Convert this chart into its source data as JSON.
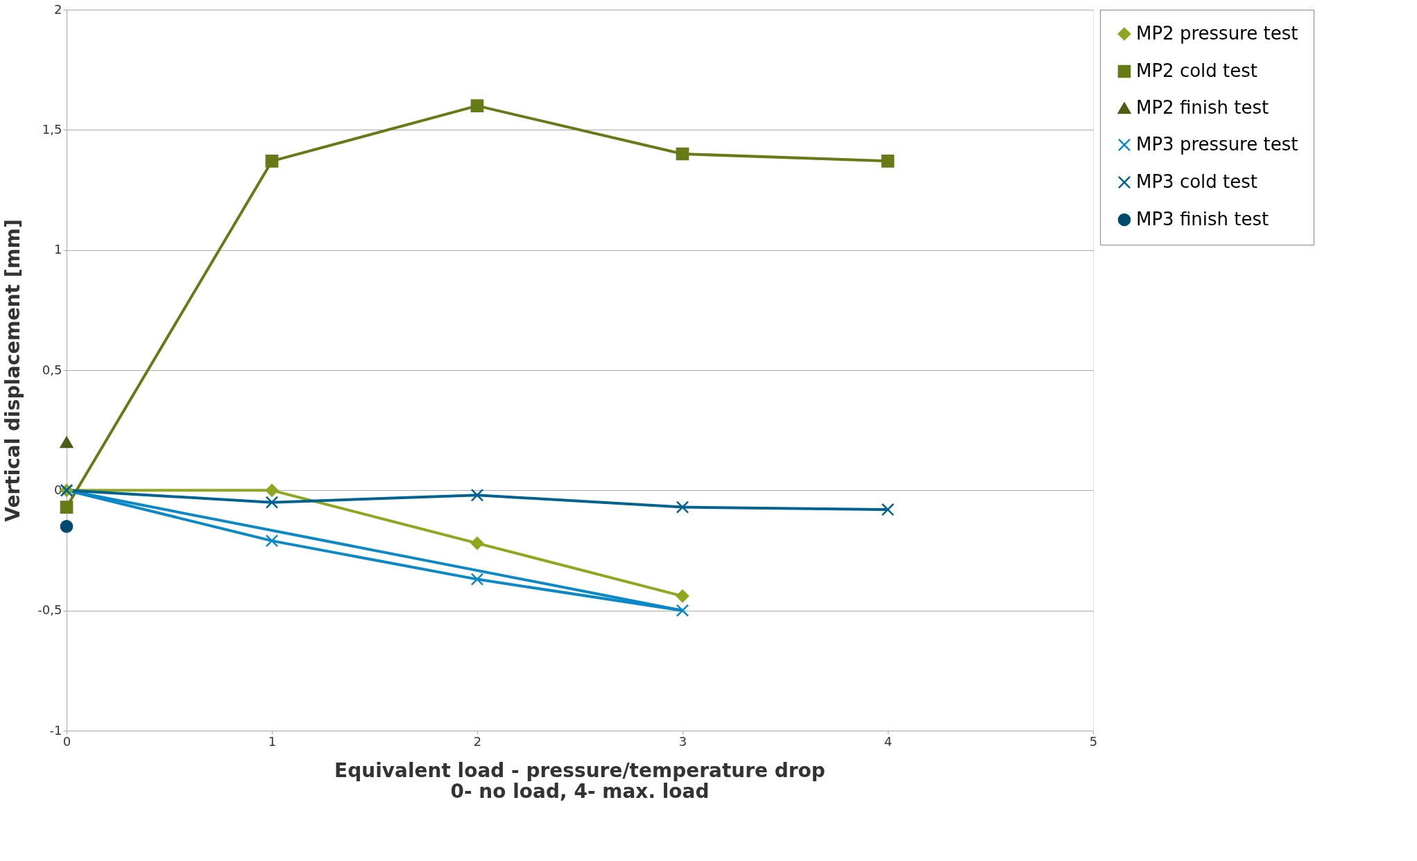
{
  "chart_data": {
    "type": "line",
    "xlabel": "Equivalent load - pressure/temperature drop\n0- no load, 4- max. load",
    "ylabel": "Vertical displacement  [mm]",
    "xlim": [
      0,
      5
    ],
    "xticks": [
      0,
      1,
      2,
      3,
      4,
      5
    ],
    "ylim": [
      -1,
      2
    ],
    "yticks": [
      -1,
      {
        "value": -0.5,
        "label": "-0,5"
      },
      0,
      {
        "value": 0.5,
        "label": "0,5"
      },
      1,
      {
        "value": 1.5,
        "label": "1,5"
      },
      2
    ],
    "grid": "y",
    "legend": "right",
    "series": [
      {
        "name": "MP2 pressure test",
        "color": "#8fa61f",
        "marker": "diamond",
        "x": [
          0,
          1,
          2,
          3
        ],
        "values": [
          0,
          0,
          -0.22,
          -0.44
        ]
      },
      {
        "name": "MP2 cold test",
        "color": "#667a16",
        "marker": "square",
        "x": [
          0,
          1,
          2,
          3,
          4
        ],
        "values": [
          -0.07,
          1.37,
          1.6,
          1.4,
          1.37
        ]
      },
      {
        "name": "MP2 finish test",
        "color": "#4c5e12",
        "marker": "triangle",
        "x": [
          0
        ],
        "values": [
          0.2
        ]
      },
      {
        "name": "MP3 pressure test",
        "color": "#0a88c8",
        "marker": "cross",
        "x": [
          0,
          1,
          2,
          3
        ],
        "values": [
          0,
          -0.21,
          -0.37,
          -0.5
        ]
      },
      {
        "color": "#0a88c8",
        "type": "line",
        "marker": "none",
        "x": [
          0,
          3
        ],
        "values": [
          0,
          -0.5
        ]
      },
      {
        "name": "MP3 cold test",
        "color": "#006290",
        "marker": "cross",
        "x": [
          0,
          1,
          2,
          3,
          4
        ],
        "values": [
          0,
          -0.05,
          -0.02,
          -0.07,
          -0.08
        ]
      },
      {
        "name": "MP3 finish test",
        "color": "#004a70",
        "marker": "circle",
        "x": [
          0
        ],
        "values": [
          -0.15
        ]
      }
    ]
  }
}
